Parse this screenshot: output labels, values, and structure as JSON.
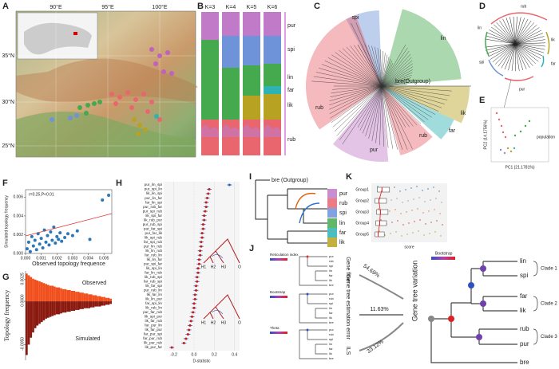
{
  "panels": {
    "A": {
      "letter": "A",
      "lon_labels": [
        "90°E",
        "95°E",
        "100°E"
      ],
      "lat_labels": [
        "35°N",
        "30°N",
        "25°N"
      ]
    },
    "B": {
      "letter": "B",
      "k_labels": [
        "K=3",
        "K=4",
        "K=5",
        "K=6"
      ],
      "groups": [
        "pur",
        "spi",
        "lin",
        "far",
        "lik",
        "rub"
      ]
    },
    "C": {
      "letter": "C",
      "clades": [
        "spi",
        "lin",
        "rub",
        "pur",
        "rub",
        "far",
        "lik"
      ],
      "outgroup": "bre(Outgroup)"
    },
    "D": {
      "letter": "D",
      "clades": [
        "rub",
        "lin",
        "spi",
        "far",
        "lik",
        "pur"
      ]
    },
    "E": {
      "letter": "E",
      "x_label": "PC1 (21.1781%)",
      "y_label": "PC2 (14.1756%)",
      "legend_title": "population"
    },
    "F": {
      "letter": "F",
      "type": "scatter",
      "annotation": "r=0.25,P<0.01",
      "x_label": "Observed topology frequence",
      "y_label": "Simulated topology frequency",
      "xlim": [
        0,
        0.0055
      ],
      "ylim": [
        0,
        0.0068
      ],
      "xticks": [
        {
          "value": 0,
          "label": "0.000"
        },
        {
          "value": 0.001,
          "label": "0.001"
        },
        {
          "value": 0.002,
          "label": "0.002"
        },
        {
          "value": 0.003,
          "label": "0.003"
        },
        {
          "value": 0.004,
          "label": "0.004"
        },
        {
          "value": 0.005,
          "label": "0.005"
        }
      ],
      "yticks": [
        {
          "value": 0,
          "label": "0.000"
        },
        {
          "value": 0.002,
          "label": "0.002"
        },
        {
          "value": 0.004,
          "label": "0.004"
        },
        {
          "value": 0.006,
          "label": "0.006"
        }
      ],
      "x": [
        0.0001,
        0.0002,
        0.0003,
        0.0004,
        0.0005,
        0.0006,
        0.0007,
        0.0008,
        0.0009,
        0.001,
        0.0011,
        0.0012,
        0.0013,
        0.0014,
        0.0015,
        0.0016,
        0.0017,
        0.0018,
        0.0019,
        0.002,
        0.0021,
        0.0022,
        0.0023,
        0.0025,
        0.0027,
        0.003,
        0.0033,
        0.0041,
        0.0049,
        0.0053
      ],
      "y": [
        0.0005,
        0.0012,
        0.0002,
        0.0018,
        0.0008,
        0.0014,
        0.0004,
        0.0021,
        0.001,
        0.0016,
        0.0006,
        0.0025,
        0.0012,
        0.0019,
        0.0009,
        0.0023,
        0.0014,
        0.0028,
        0.0011,
        0.0018,
        0.0015,
        0.0022,
        0.0013,
        0.0017,
        0.0021,
        0.0019,
        0.0024,
        0.0015,
        0.0057,
        0.0062
      ]
    },
    "G": {
      "letter": "G",
      "type": "bar",
      "y_label": "Topology frequency",
      "observed_label": "Observed",
      "simulated_label": "Simulated",
      "ylim": [
        -0.0068,
        0.0035
      ],
      "yticks": [
        {
          "value": -0.005,
          "label": "-0.0050"
        },
        {
          "value": 0,
          "label": "0.0000"
        },
        {
          "value": 0.0025,
          "label": "0.0025"
        }
      ],
      "observed": [
        0.0032,
        0.003,
        0.0028,
        0.0026,
        0.0025,
        0.0024,
        0.0023,
        0.0022,
        0.0021,
        0.002,
        0.0019,
        0.0018,
        0.0018,
        0.0017,
        0.0016,
        0.0016,
        0.0015,
        0.0014,
        0.0014,
        0.0013,
        0.0013,
        0.0012,
        0.0012,
        0.0011,
        0.0011,
        0.001,
        0.001,
        0.0009,
        0.0009,
        0.0008,
        0.0008,
        0.0007,
        0.0007,
        0.0006,
        0.0006,
        0.0005,
        0.0005,
        0.0004,
        0.0004,
        0.0003
      ],
      "simulated": [
        -0.0062,
        -0.005,
        -0.0042,
        -0.0036,
        -0.0031,
        -0.0028,
        -0.0026,
        -0.0024,
        -0.0022,
        -0.002,
        -0.0019,
        -0.0018,
        -0.0017,
        -0.0016,
        -0.0015,
        -0.0015,
        -0.0014,
        -0.0013,
        -0.0013,
        -0.0012,
        -0.0012,
        -0.0011,
        -0.0011,
        -0.001,
        -0.001,
        -0.0009,
        -0.0009,
        -0.0008,
        -0.0008,
        -0.0008,
        -0.0007,
        -0.0007,
        -0.0006,
        -0.0006,
        -0.0006,
        -0.0005,
        -0.0005,
        -0.0004,
        -0.0004,
        -0.0003
      ]
    },
    "H": {
      "letter": "H",
      "type": "dot",
      "x_label": "D-statistic",
      "xlim": [
        -0.3,
        0.45
      ],
      "xticks": [
        -0.2,
        {
          "value": 0,
          "label": "0.0"
        },
        0.2,
        0.4
      ],
      "tree_labels": [
        "H1",
        "H2",
        "H3",
        "O"
      ],
      "categories": [
        "pur_lin_spi",
        "pur_spi_lin",
        "lik_lin_spi",
        "pur_lin_far",
        "far_lin_spi",
        "pur_rub_far",
        "pur_spi_rub",
        "lik_spi_far",
        "lik_rub_pur",
        "pur_rub_spi",
        "pur_far_spi",
        "pur_far_lik",
        "lik_spi_rub",
        "far_spi_rub",
        "pur_lin_rub",
        "lik_lin_rub",
        "far_rub_lin",
        "lik_lin_far",
        "pur_spi_far",
        "lik_spi_lin",
        "far_lin_rub",
        "lik_rub_spi",
        "far_rub_spi",
        "lik_far_spi",
        "pur_rub_lin",
        "lik_far_lin",
        "lik_lin_pur",
        "far_spi_lin",
        "lik_rub_lin",
        "pur_far_rub",
        "lik_spi_pur",
        "lik_far_rub",
        "far_pur_lin",
        "lik_far_pur",
        "far_pur_spi",
        "far_pur_rub",
        "lik_pur_rub",
        "lik_pur_far"
      ],
      "values": [
        0.35,
        0.15,
        0.14,
        0.13,
        0.12,
        0.12,
        0.11,
        0.1,
        0.1,
        0.09,
        0.09,
        0.08,
        0.08,
        0.07,
        0.07,
        0.06,
        0.06,
        0.05,
        0.05,
        0.04,
        0.04,
        0.03,
        0.03,
        0.02,
        0.02,
        0.01,
        0.01,
        0.0,
        0.0,
        -0.01,
        -0.02,
        -0.03,
        -0.04,
        -0.05,
        -0.06,
        -0.08,
        -0.1,
        -0.22
      ]
    },
    "I": {
      "letter": "I",
      "outgroup": "bre (Outgroup)",
      "leaves": [
        "pur",
        "rub",
        "spi",
        "lin",
        "far",
        "lik"
      ]
    },
    "K": {
      "letter": "K",
      "categories": [
        "Group1",
        "Group2",
        "Group3",
        "Group4",
        "Group5"
      ],
      "x_label": "score",
      "xlim": [
        0,
        1
      ],
      "q1": [
        0.08,
        0.05,
        0.07,
        0.06,
        0.05
      ],
      "median": [
        0.14,
        0.1,
        0.12,
        0.11,
        0.09
      ],
      "q3": [
        0.24,
        0.2,
        0.22,
        0.2,
        0.17
      ]
    },
    "J": {
      "letter": "J",
      "legends": [
        "Reticulation index",
        "Bootstrap",
        "Theta"
      ],
      "causes": [
        "Gene flow",
        "Gene tree estimation error",
        "ILS"
      ],
      "shares": [
        "54.69%",
        "11.63%",
        "33.12%"
      ],
      "summary": "Gene tree variation",
      "bootstrap_legend": "Bootstrap",
      "small_leaves": [
        "pur",
        "rub",
        "spi",
        "lin",
        "far",
        "lik",
        "bre"
      ],
      "leaves": [
        "lin",
        "spi",
        "far",
        "lik",
        "rub",
        "pur",
        "bre"
      ],
      "clades": [
        "Clade 1",
        "Clade 2",
        "Clade 3"
      ]
    }
  }
}
